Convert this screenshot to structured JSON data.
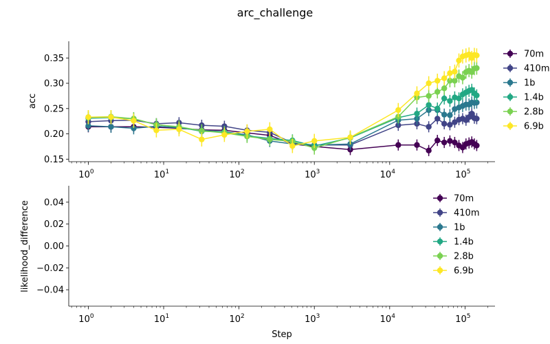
{
  "figure": {
    "title": "arc_challenge"
  },
  "palette": {
    "70m": "#440154",
    "410m": "#414487",
    "1b": "#2a788e",
    "1.4b": "#22a884",
    "2.8b": "#7ad151",
    "6.9b": "#fde725"
  },
  "chart_data": [
    {
      "type": "line",
      "name": "acc-panel",
      "ylabel": "acc",
      "xlabel": "",
      "xscale": "log",
      "xlim": [
        0.55,
        250000
      ],
      "ylim": [
        0.145,
        0.383
      ],
      "yticks": [
        0.15,
        0.2,
        0.25,
        0.3,
        0.35
      ],
      "ytick_labels": [
        "0.15",
        "0.20",
        "0.25",
        "0.30",
        "0.35"
      ],
      "xticks": [
        1,
        10,
        100,
        1000,
        10000,
        100000
      ],
      "xtick_labels": [
        "0",
        "1",
        "2",
        "3",
        "4",
        "5"
      ],
      "grid": false,
      "legend": "outside-right",
      "error_bars": true,
      "steps": [
        1,
        2,
        4,
        8,
        16,
        32,
        64,
        128,
        256,
        512,
        1000,
        3000,
        13000,
        23000,
        33000,
        43000,
        53000,
        63000,
        73000,
        83000,
        93000,
        103000,
        113000,
        123000,
        133000,
        143000
      ],
      "series": [
        {
          "name": "70m",
          "err": 0.011,
          "values": [
            0.214,
            0.214,
            0.214,
            0.213,
            0.211,
            0.208,
            0.207,
            0.202,
            0.197,
            0.18,
            0.175,
            0.169,
            0.178,
            0.178,
            0.167,
            0.187,
            0.183,
            0.186,
            0.183,
            0.177,
            0.173,
            0.18,
            0.182,
            0.184,
            0.18,
            0.177
          ]
        },
        {
          "name": "410m",
          "err": 0.011,
          "values": [
            0.224,
            0.226,
            0.227,
            0.22,
            0.222,
            0.217,
            0.215,
            0.207,
            0.203,
            0.182,
            0.178,
            0.178,
            0.217,
            0.22,
            0.214,
            0.23,
            0.22,
            0.218,
            0.223,
            0.228,
            0.23,
            0.227,
            0.233,
            0.24,
            0.231,
            0.23
          ]
        },
        {
          "name": "1b",
          "err": 0.012,
          "values": [
            0.216,
            0.214,
            0.211,
            0.215,
            0.212,
            0.207,
            0.204,
            0.198,
            0.186,
            0.18,
            0.178,
            0.18,
            0.227,
            0.23,
            0.247,
            0.247,
            0.238,
            0.237,
            0.249,
            0.252,
            0.255,
            0.258,
            0.258,
            0.262,
            0.261,
            0.262
          ]
        },
        {
          "name": "1.4b",
          "err": 0.012,
          "values": [
            0.231,
            0.232,
            0.23,
            0.218,
            0.213,
            0.205,
            0.204,
            0.196,
            0.191,
            0.187,
            0.176,
            0.192,
            0.232,
            0.24,
            0.257,
            0.25,
            0.27,
            0.265,
            0.272,
            0.27,
            0.278,
            0.282,
            0.285,
            0.287,
            0.28,
            0.276
          ]
        },
        {
          "name": "2.8b",
          "err": 0.013,
          "values": [
            0.233,
            0.234,
            0.23,
            0.218,
            0.214,
            0.206,
            0.202,
            0.195,
            0.189,
            0.185,
            0.172,
            0.193,
            0.234,
            0.272,
            0.275,
            0.283,
            0.29,
            0.305,
            0.305,
            0.314,
            0.311,
            0.322,
            0.325,
            0.322,
            0.329,
            0.33
          ]
        },
        {
          "name": "6.9b",
          "err": 0.014,
          "values": [
            0.233,
            0.233,
            0.226,
            0.207,
            0.209,
            0.189,
            0.198,
            0.205,
            0.209,
            0.176,
            0.186,
            0.193,
            0.247,
            0.28,
            0.3,
            0.305,
            0.31,
            0.32,
            0.323,
            0.345,
            0.353,
            0.355,
            0.357,
            0.35,
            0.356,
            0.355
          ]
        }
      ]
    },
    {
      "type": "line",
      "name": "likelihood-panel",
      "ylabel": "likelihood_difference",
      "xlabel": "Step",
      "xscale": "log",
      "xlim": [
        0.55,
        250000
      ],
      "ylim": [
        -0.055,
        0.055
      ],
      "yticks": [
        -0.04,
        -0.02,
        0.0,
        0.02,
        0.04
      ],
      "ytick_labels": [
        "−0.04",
        "−0.02",
        "0.00",
        "0.02",
        "0.04"
      ],
      "xticks": [
        1,
        10,
        100,
        1000,
        10000,
        100000
      ],
      "xtick_labels": [
        "0",
        "1",
        "2",
        "3",
        "4",
        "5"
      ],
      "grid": false,
      "legend": "upper-right",
      "series": [
        {
          "name": "70m",
          "values": []
        },
        {
          "name": "410m",
          "values": []
        },
        {
          "name": "1b",
          "values": []
        },
        {
          "name": "1.4b",
          "values": []
        },
        {
          "name": "2.8b",
          "values": []
        },
        {
          "name": "6.9b",
          "values": []
        }
      ]
    }
  ]
}
